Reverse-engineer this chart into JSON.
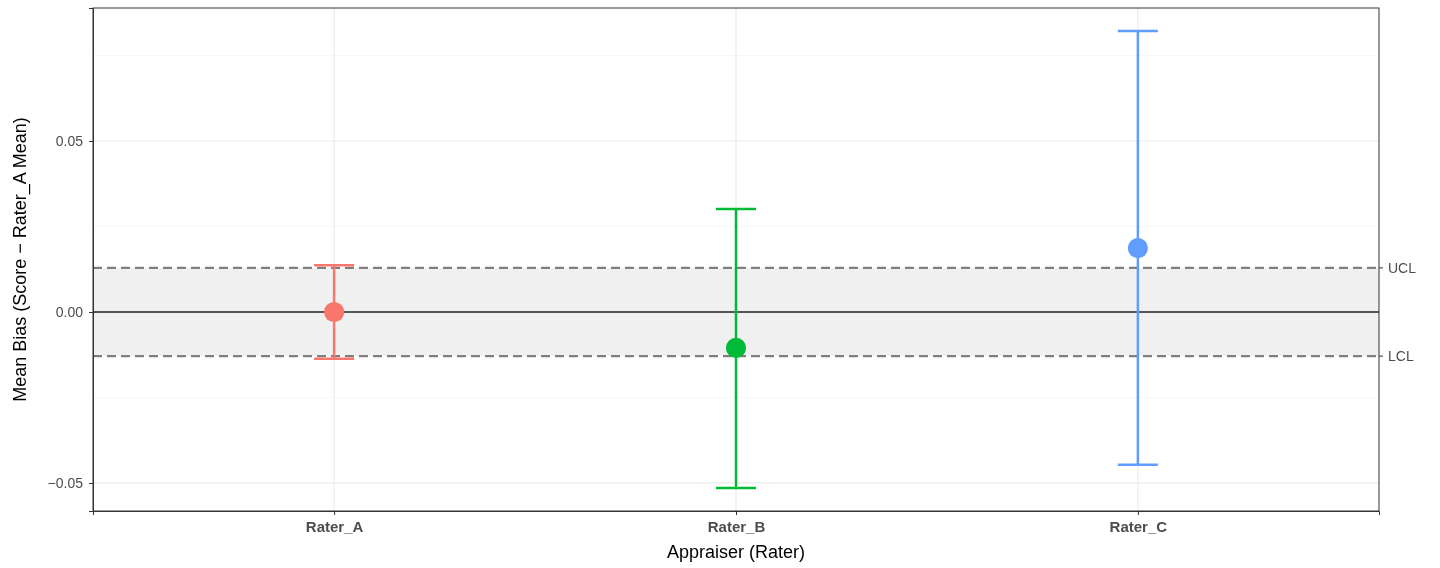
{
  "chart_data": {
    "type": "scatter",
    "xlabel": "Appraiser (Rater)",
    "ylabel": "Mean Bias (Score − Rater_A Mean)",
    "categories": [
      "Rater_A",
      "Rater_B",
      "Rater_C"
    ],
    "values": [
      0,
      -0.0105,
      0.0187
    ],
    "errors": [
      [
        -0.0137,
        0.0137
      ],
      [
        -0.0515,
        0.0301
      ],
      [
        -0.0447,
        0.0822
      ]
    ],
    "colors": [
      "#f8766d",
      "#00ba38",
      "#619cff"
    ],
    "marker": "circle",
    "ylim": [
      -0.0582,
      0.0889
    ],
    "yticks": [
      {
        "value": -0.05,
        "label": "−0.05"
      },
      {
        "value": 0,
        "label": "0.00"
      },
      {
        "value": 0.05,
        "label": "0.05"
      }
    ],
    "grid": true,
    "bands": [
      {
        "axis": "y",
        "from": -0.0129,
        "to": 0.0129,
        "color": "#f0f0f0"
      }
    ],
    "ref_lines": [
      {
        "axis": "y",
        "value": 0,
        "color": "#555555",
        "line_style": "solid"
      },
      {
        "axis": "y",
        "value": 0.0129,
        "label": "UCL",
        "color": "#7f7f7f",
        "line_style": "dashed"
      },
      {
        "axis": "y",
        "value": -0.0129,
        "label": "LCL",
        "color": "#7f7f7f",
        "line_style": "dashed"
      }
    ]
  }
}
